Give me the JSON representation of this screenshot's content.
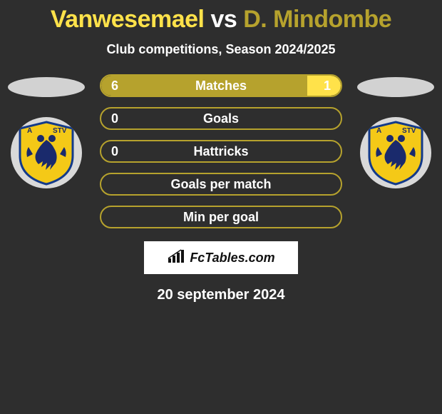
{
  "title": {
    "player1": "Vanwesemael",
    "vs": "vs",
    "player2": "D. Mindombe",
    "player1_color": "#ffe24a",
    "vs_color": "#ffffff",
    "player2_color": "#b6a22d"
  },
  "subtitle": "Club competitions, Season 2024/2025",
  "colors": {
    "background": "#2e2e2e",
    "ellipse_left": "#d2d2d2",
    "ellipse_right": "#d2d2d2",
    "crest_bg": "#d9d9d9",
    "bar_border": "#b6a22d",
    "fill_left": "#b6a22d",
    "fill_right": "#ffe24a",
    "label_text": "#ffffff",
    "brand_bg": "#ffffff"
  },
  "stats": [
    {
      "label": "Matches",
      "left_val": "6",
      "right_val": "1",
      "left_pct": 86,
      "right_pct": 14
    },
    {
      "label": "Goals",
      "left_val": "0",
      "right_val": "",
      "left_pct": 0,
      "right_pct": 0
    },
    {
      "label": "Hattricks",
      "left_val": "0",
      "right_val": "",
      "left_pct": 0,
      "right_pct": 0
    },
    {
      "label": "Goals per match",
      "left_val": "",
      "right_val": "",
      "left_pct": 0,
      "right_pct": 0
    },
    {
      "label": "Min per goal",
      "left_val": "",
      "right_val": "",
      "left_pct": 0,
      "right_pct": 0
    }
  ],
  "bar_style": {
    "height": 32,
    "border_radius": 16,
    "border_width": 2,
    "label_fontsize": 18,
    "value_fontsize": 18
  },
  "crest": {
    "shield_fill": "#f4c917",
    "shield_border": "#133a8a",
    "eagle_color": "#1a2a6c",
    "label_left": "A",
    "label_right": "STV"
  },
  "brand": {
    "text": "FcTables.com"
  },
  "date": "20 september 2024"
}
